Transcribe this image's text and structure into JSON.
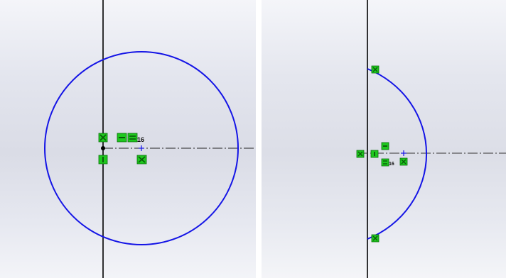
{
  "colors": {
    "sketch_entity": "#1414e6",
    "construction_line": "#000000",
    "relation_badge": "#1ec81e",
    "relation_badge_border": "#0a6e0a",
    "point": "#000000"
  },
  "left_view": {
    "entity": "full-circle",
    "relation_icons": [
      "coincident-icon",
      "horizontal-icon",
      "equal-icon",
      "vertical-icon",
      "coincident-icon"
    ],
    "relation_label": "16"
  },
  "right_view": {
    "entity": "half-circle-arc",
    "relation_icons": [
      "coincident-icon",
      "coincident-icon",
      "coincident-icon",
      "vertical-icon",
      "horizontal-icon",
      "equal-icon",
      "coincident-icon"
    ],
    "relation_label": "16"
  }
}
